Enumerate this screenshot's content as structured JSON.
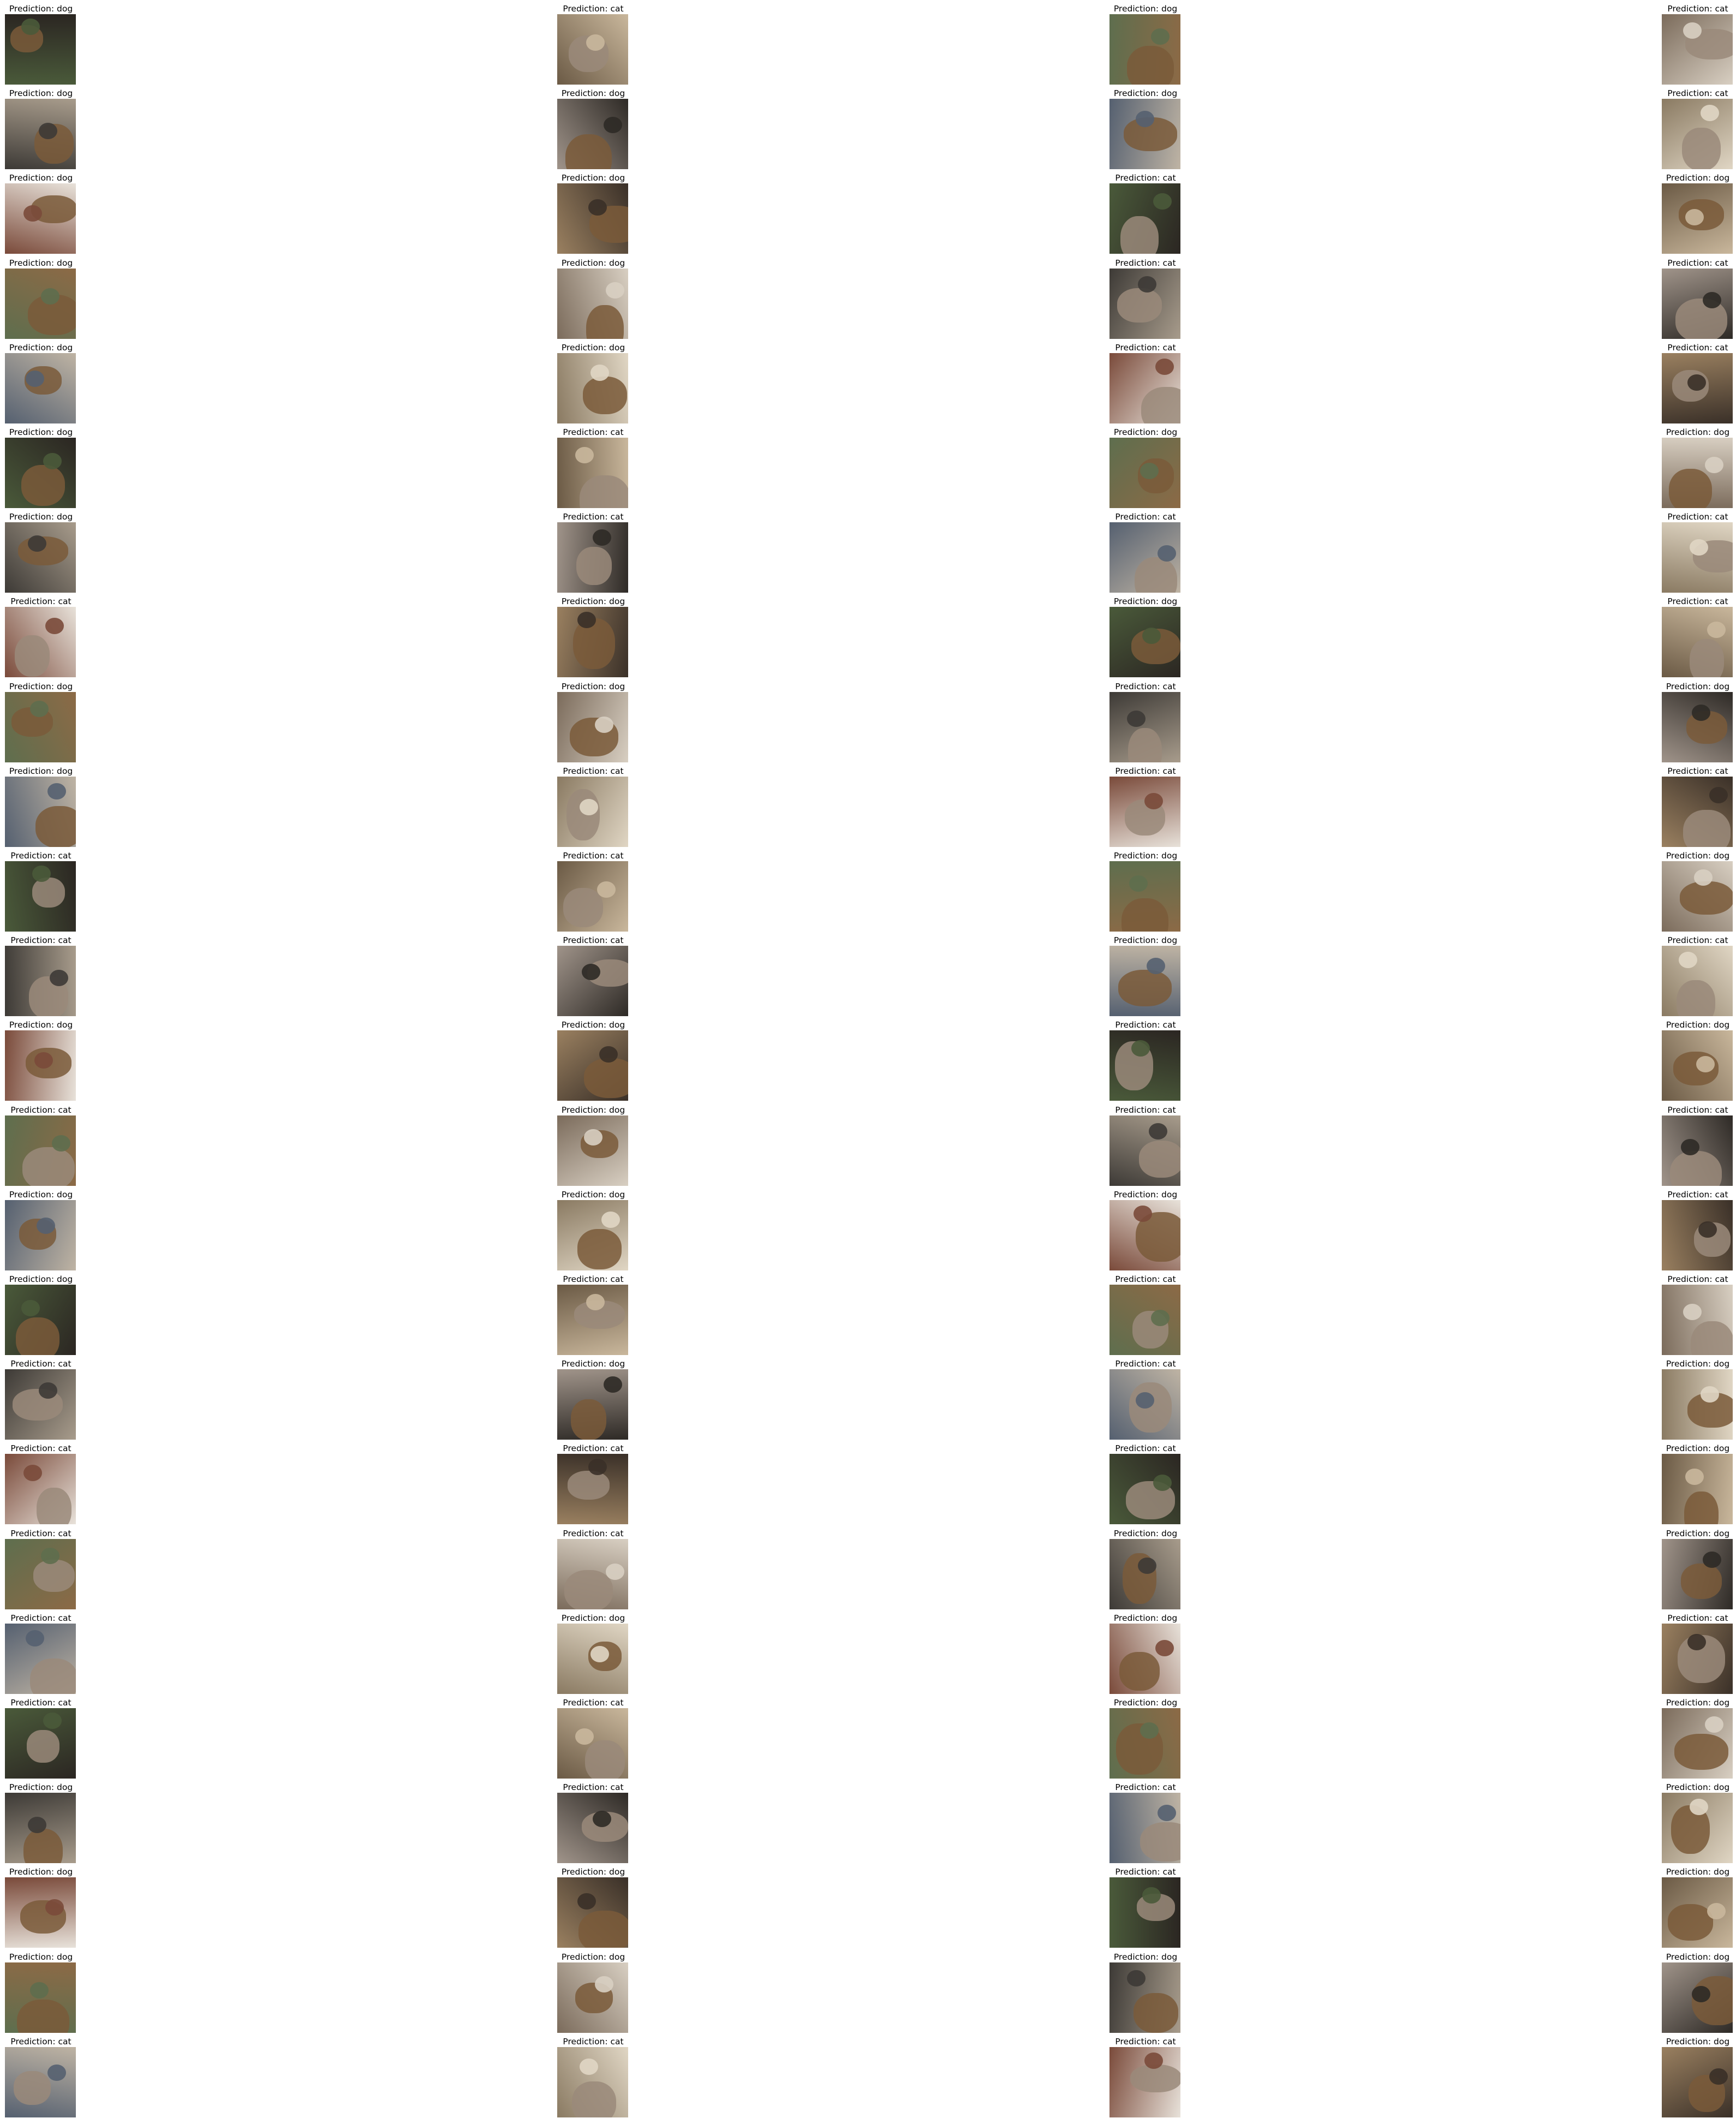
{
  "figure": {
    "columns": 4,
    "rows": 25,
    "title_prefix": "Prediction: ",
    "label_colors": {
      "cat": "#9a8a7a",
      "dog": "#7a5a3a"
    },
    "panels": [
      {
        "label": "dog"
      },
      {
        "label": "cat"
      },
      {
        "label": "dog"
      },
      {
        "label": "cat"
      },
      {
        "label": "dog"
      },
      {
        "label": "dog"
      },
      {
        "label": "dog"
      },
      {
        "label": "cat"
      },
      {
        "label": "dog"
      },
      {
        "label": "dog"
      },
      {
        "label": "cat"
      },
      {
        "label": "dog"
      },
      {
        "label": "dog"
      },
      {
        "label": "dog"
      },
      {
        "label": "cat"
      },
      {
        "label": "cat"
      },
      {
        "label": "dog"
      },
      {
        "label": "dog"
      },
      {
        "label": "cat"
      },
      {
        "label": "cat"
      },
      {
        "label": "dog"
      },
      {
        "label": "cat"
      },
      {
        "label": "dog"
      },
      {
        "label": "dog"
      },
      {
        "label": "dog"
      },
      {
        "label": "cat"
      },
      {
        "label": "cat"
      },
      {
        "label": "cat"
      },
      {
        "label": "cat"
      },
      {
        "label": "dog"
      },
      {
        "label": "dog"
      },
      {
        "label": "cat"
      },
      {
        "label": "dog"
      },
      {
        "label": "dog"
      },
      {
        "label": "cat"
      },
      {
        "label": "dog"
      },
      {
        "label": "dog"
      },
      {
        "label": "cat"
      },
      {
        "label": "cat"
      },
      {
        "label": "cat"
      },
      {
        "label": "cat"
      },
      {
        "label": "cat"
      },
      {
        "label": "dog"
      },
      {
        "label": "dog"
      },
      {
        "label": "cat"
      },
      {
        "label": "cat"
      },
      {
        "label": "dog"
      },
      {
        "label": "cat"
      },
      {
        "label": "dog"
      },
      {
        "label": "dog"
      },
      {
        "label": "cat"
      },
      {
        "label": "dog"
      },
      {
        "label": "cat"
      },
      {
        "label": "dog"
      },
      {
        "label": "cat"
      },
      {
        "label": "cat"
      },
      {
        "label": "dog"
      },
      {
        "label": "dog"
      },
      {
        "label": "dog"
      },
      {
        "label": "cat"
      },
      {
        "label": "dog"
      },
      {
        "label": "cat"
      },
      {
        "label": "cat"
      },
      {
        "label": "cat"
      },
      {
        "label": "cat"
      },
      {
        "label": "dog"
      },
      {
        "label": "cat"
      },
      {
        "label": "dog"
      },
      {
        "label": "cat"
      },
      {
        "label": "cat"
      },
      {
        "label": "cat"
      },
      {
        "label": "dog"
      },
      {
        "label": "cat"
      },
      {
        "label": "cat"
      },
      {
        "label": "dog"
      },
      {
        "label": "dog"
      },
      {
        "label": "cat"
      },
      {
        "label": "dog"
      },
      {
        "label": "dog"
      },
      {
        "label": "cat"
      },
      {
        "label": "cat"
      },
      {
        "label": "cat"
      },
      {
        "label": "dog"
      },
      {
        "label": "dog"
      },
      {
        "label": "dog"
      },
      {
        "label": "cat"
      },
      {
        "label": "cat"
      },
      {
        "label": "dog"
      },
      {
        "label": "dog"
      },
      {
        "label": "dog"
      },
      {
        "label": "cat"
      },
      {
        "label": "dog"
      },
      {
        "label": "dog"
      },
      {
        "label": "dog"
      },
      {
        "label": "dog"
      },
      {
        "label": "dog"
      },
      {
        "label": "cat"
      },
      {
        "label": "cat"
      },
      {
        "label": "cat"
      },
      {
        "label": "dog"
      }
    ]
  }
}
